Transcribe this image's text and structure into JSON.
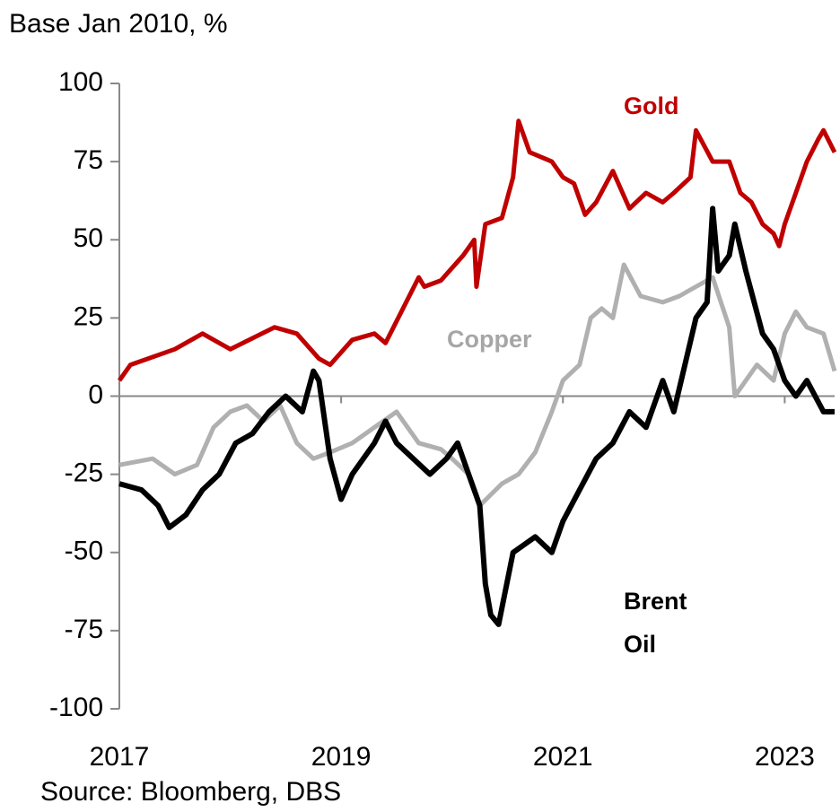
{
  "chart_data": {
    "type": "line",
    "ylabel": "Base Jan 2010, %",
    "source": "Source: Bloomberg, DBS",
    "xlim": [
      2017,
      2023.45
    ],
    "xticks": [
      2017,
      2019,
      2021,
      2023
    ],
    "ylim": [
      -100,
      100
    ],
    "yticks": [
      -100,
      -75,
      -50,
      -25,
      0,
      25,
      50,
      75,
      100
    ],
    "series": [
      {
        "name": "Copper",
        "color": "#b0b0b0",
        "x": [
          2017,
          2017.3,
          2017.5,
          2017.7,
          2017.85,
          2018.0,
          2018.15,
          2018.3,
          2018.45,
          2018.6,
          2018.75,
          2018.9,
          2019.1,
          2019.3,
          2019.5,
          2019.7,
          2019.9,
          2020.0,
          2020.15,
          2020.25,
          2020.45,
          2020.6,
          2020.75,
          2020.9,
          2021.0,
          2021.15,
          2021.25,
          2021.35,
          2021.45,
          2021.55,
          2021.7,
          2021.9,
          2022.05,
          2022.2,
          2022.35,
          2022.5,
          2022.55,
          2022.65,
          2022.75,
          2022.9,
          2023.0,
          2023.1,
          2023.2,
          2023.35,
          2023.45
        ],
        "values": [
          -22,
          -20,
          -25,
          -22,
          -10,
          -5,
          -3,
          -8,
          -3,
          -15,
          -20,
          -18,
          -15,
          -10,
          -5,
          -15,
          -17,
          -20,
          -25,
          -35,
          -28,
          -25,
          -18,
          -5,
          5,
          10,
          25,
          28,
          25,
          42,
          32,
          30,
          32,
          35,
          38,
          22,
          0,
          5,
          10,
          5,
          20,
          27,
          22,
          20,
          8
        ]
      },
      {
        "name": "Gold",
        "color": "#c00000",
        "x": [
          2017,
          2017.1,
          2017.5,
          2017.75,
          2018.0,
          2018.4,
          2018.6,
          2018.8,
          2018.9,
          2019.1,
          2019.3,
          2019.4,
          2019.7,
          2019.75,
          2019.9,
          2020.1,
          2020.2,
          2020.22,
          2020.3,
          2020.45,
          2020.55,
          2020.6,
          2020.7,
          2020.9,
          2021.0,
          2021.1,
          2021.2,
          2021.3,
          2021.45,
          2021.6,
          2021.75,
          2021.9,
          2022.0,
          2022.15,
          2022.2,
          2022.35,
          2022.5,
          2022.6,
          2022.7,
          2022.8,
          2022.9,
          2022.95,
          2023.0,
          2023.1,
          2023.2,
          2023.3,
          2023.35,
          2023.45
        ],
        "values": [
          5,
          10,
          15,
          20,
          15,
          22,
          20,
          12,
          10,
          18,
          20,
          17,
          38,
          35,
          37,
          45,
          50,
          35,
          55,
          57,
          70,
          88,
          78,
          75,
          70,
          68,
          58,
          62,
          72,
          60,
          65,
          62,
          65,
          70,
          85,
          75,
          75,
          65,
          62,
          55,
          52,
          48,
          55,
          65,
          75,
          82,
          85,
          78
        ]
      },
      {
        "name": "Brent Oil",
        "color": "#000000",
        "x": [
          2017,
          2017.2,
          2017.35,
          2017.45,
          2017.6,
          2017.75,
          2017.9,
          2018.05,
          2018.2,
          2018.35,
          2018.5,
          2018.65,
          2018.75,
          2018.8,
          2018.9,
          2019.0,
          2019.1,
          2019.3,
          2019.4,
          2019.5,
          2019.65,
          2019.8,
          2019.95,
          2020.05,
          2020.15,
          2020.25,
          2020.3,
          2020.35,
          2020.42,
          2020.55,
          2020.75,
          2020.9,
          2021.0,
          2021.15,
          2021.3,
          2021.45,
          2021.6,
          2021.75,
          2021.9,
          2022.0,
          2022.1,
          2022.2,
          2022.3,
          2022.35,
          2022.4,
          2022.5,
          2022.55,
          2022.65,
          2022.8,
          2022.9,
          2023.0,
          2023.1,
          2023.2,
          2023.35,
          2023.45
        ],
        "values": [
          -28,
          -30,
          -35,
          -42,
          -38,
          -30,
          -25,
          -15,
          -12,
          -5,
          0,
          -5,
          8,
          5,
          -20,
          -33,
          -25,
          -15,
          -8,
          -15,
          -20,
          -25,
          -20,
          -15,
          -25,
          -35,
          -60,
          -70,
          -73,
          -50,
          -45,
          -50,
          -40,
          -30,
          -20,
          -15,
          -5,
          -10,
          5,
          -5,
          10,
          25,
          30,
          60,
          40,
          45,
          55,
          40,
          20,
          15,
          5,
          0,
          5,
          -5,
          -5
        ]
      }
    ]
  }
}
